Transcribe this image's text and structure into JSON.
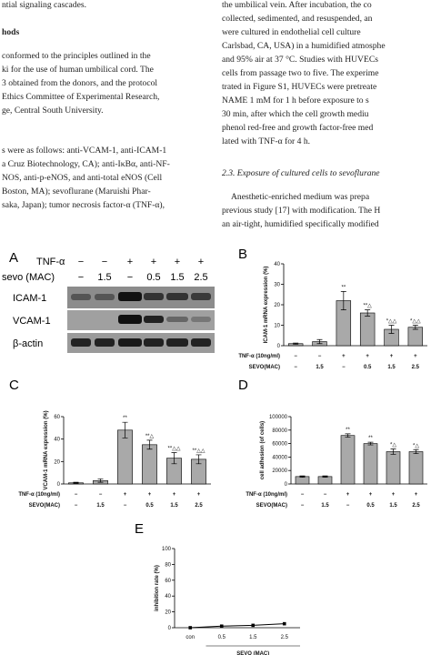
{
  "text": {
    "left_top": "ntial signaling cascades.",
    "left_heading": "hods",
    "left_para1": [
      "conformed to the principles outlined in the",
      "ki for the use of human umbilical cord. The",
      "3 obtained from the donors, and the protocol",
      "Ethics Committee of Experimental Research,",
      "ge, Central South University."
    ],
    "left_para2": [
      "s were as follows: anti-VCAM-1, anti-ICAM-1",
      "a Cruz Biotechnology, CA); anti-IκBα, anti-NF-",
      "NOS, anti-p-eNOS, and anti-total eNOS (Cell",
      " Boston, MA); sevoflurane (Maruishi Phar-",
      "saka, Japan); tumor necrosis factor-α (TNF-α),"
    ],
    "right_para1": [
      "the umbilical vein. After incubation, the co",
      "collected, sedimented, and resuspended, an",
      "were cultured in endothelial cell culture",
      "Carlsbad, CA, USA) in a humidified atmosphe",
      "and 95% air at 37 °C. Studies with HUVECs",
      "cells from passage two to five. The experime",
      "trated in Figure S1, HUVECs were pretreate",
      "NAME 1 mM for 1 h before exposure to s",
      "30 min, after which the cell growth mediu",
      "phenol red-free and growth factor-free med",
      "lated with TNF-α for 4 h."
    ],
    "right_heading": "2.3. Exposure of cultured cells to sevoflurane",
    "right_para2": [
      "Anesthetic-enriched medium was prepa",
      "previous study [17] with modification. The H",
      "an air-tight, humidified specifically modified"
    ]
  },
  "blot": {
    "label": "A",
    "row_labels": [
      "TNF-α",
      "sevo (MAC)"
    ],
    "rows": [
      [
        "−",
        "−",
        "+",
        "+",
        "+",
        "+"
      ],
      [
        "−",
        "1.5",
        "−",
        "0.5",
        "1.5",
        "2.5"
      ]
    ],
    "bands": [
      "ICAM-1",
      "VCAM-1",
      "β-actin"
    ]
  },
  "chart_data": [
    {
      "type": "bar",
      "label": "B",
      "y_label": "ICAM-1 mRNA expression (%)",
      "values": [
        1,
        2,
        22,
        16,
        8,
        9
      ],
      "errors": [
        0.3,
        1,
        4.5,
        1.5,
        2,
        1
      ],
      "annotations": [
        null,
        null,
        "**",
        "**△",
        "*△△",
        "*△△"
      ],
      "row_labels": [
        "TNF-α (10ng/ml)",
        "SEVO(MAC)"
      ],
      "rows": [
        [
          "−",
          "−",
          "+",
          "+",
          "+",
          "+"
        ],
        [
          "−",
          "1.5",
          "−",
          "0.5",
          "1.5",
          "2.5"
        ]
      ],
      "ylim": [
        0,
        40
      ],
      "yticks": [
        0,
        10,
        20,
        30,
        40
      ],
      "color": "#a9a9a9"
    },
    {
      "type": "bar",
      "label": "C",
      "y_label": "VCAM-1 mRNA expression (%)",
      "values": [
        1,
        3,
        48,
        35,
        23,
        22
      ],
      "errors": [
        0.5,
        1.5,
        7,
        4,
        5,
        4
      ],
      "annotations": [
        null,
        null,
        "**",
        "**△",
        "**△△",
        "**△△"
      ],
      "row_labels": [
        "TNF-α (10ng/ml)",
        "SEVO(MAC)"
      ],
      "rows": [
        [
          "−",
          "−",
          "+",
          "+",
          "+",
          "+"
        ],
        [
          "−",
          "1.5",
          "−",
          "0.5",
          "1.5",
          "2.5"
        ]
      ],
      "ylim": [
        0,
        60
      ],
      "yticks": [
        0,
        20,
        40,
        60
      ],
      "color": "#a9a9a9"
    },
    {
      "type": "bar",
      "label": "D",
      "y_label": "cell adhesion (of cells)",
      "values": [
        11000,
        11000,
        72000,
        60000,
        48000,
        48000
      ],
      "errors": [
        1000,
        1000,
        2500,
        2000,
        4000,
        3000
      ],
      "annotations": [
        null,
        null,
        "**",
        "**",
        "*△",
        "*△"
      ],
      "row_labels": [
        "TNF-α (10ng/ml)",
        "SEVO(MAC)"
      ],
      "rows": [
        [
          "−",
          "−",
          "+",
          "+",
          "+",
          "+"
        ],
        [
          "−",
          "1.5",
          "−",
          "0.5",
          "1.5",
          "2.5"
        ]
      ],
      "ylim": [
        0,
        100000
      ],
      "yticks": [
        0,
        20000,
        40000,
        60000,
        80000,
        100000
      ],
      "color": "#a9a9a9"
    },
    {
      "type": "line",
      "label": "E",
      "y_label": "inhibition rate (%)",
      "x_label": "SEVO (MAC)",
      "categories": [
        "con",
        "0.5",
        "1.5",
        "2.5"
      ],
      "values": [
        0,
        2,
        3,
        5
      ],
      "ylim": [
        0,
        100
      ],
      "yticks": [
        0,
        20,
        40,
        60,
        80,
        100
      ],
      "color": "#000000"
    }
  ]
}
